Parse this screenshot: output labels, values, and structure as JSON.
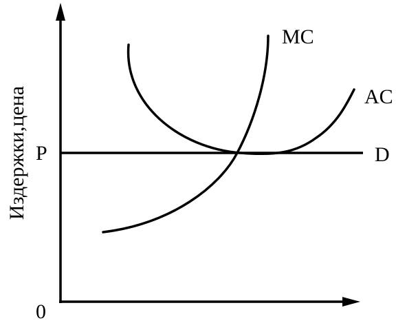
{
  "labels": {
    "y_axis": "Издержки,цена",
    "origin": "0",
    "price": "P",
    "mc": "MC",
    "ac": "AC",
    "demand": "D"
  }
}
